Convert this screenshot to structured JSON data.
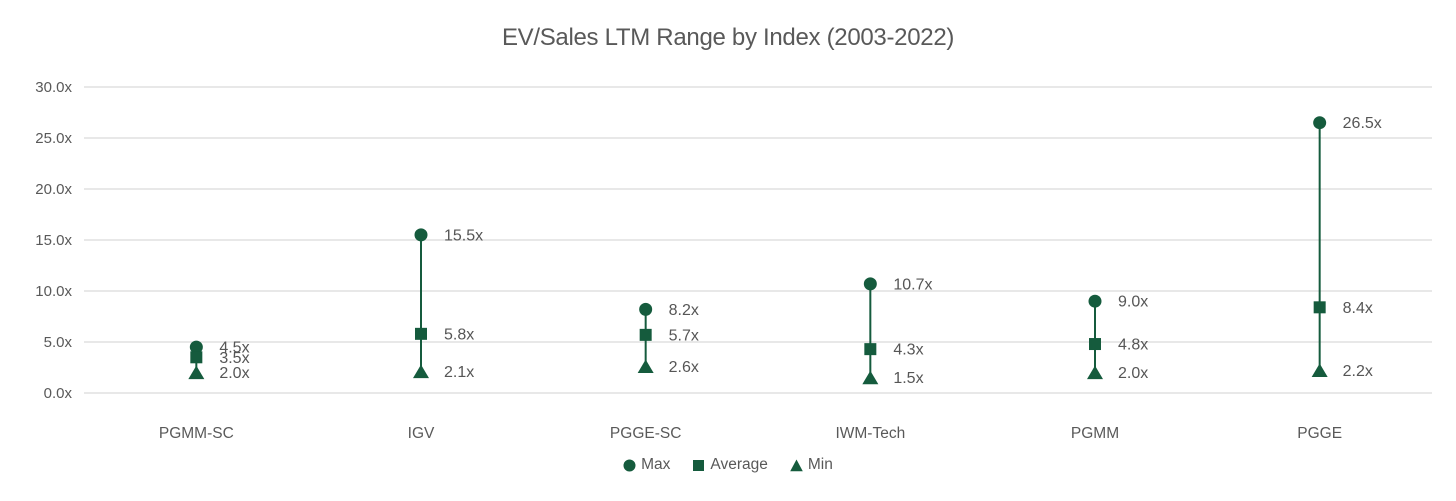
{
  "chart_data": {
    "type": "scatter",
    "variant": "vertical-high-low-range",
    "title": "EV/Sales LTM Range by Index (2003-2022)",
    "categories": [
      "PGMM-SC",
      "IGV",
      "PGGE-SC",
      "IWM-Tech",
      "PGMM",
      "PGGE"
    ],
    "series": [
      {
        "name": "Max",
        "marker": "circle",
        "values": [
          4.5,
          15.5,
          8.2,
          10.7,
          9.0,
          26.5
        ]
      },
      {
        "name": "Average",
        "marker": "square",
        "values": [
          3.5,
          5.8,
          5.7,
          4.3,
          4.8,
          8.4
        ]
      },
      {
        "name": "Min",
        "marker": "triangle",
        "values": [
          2.0,
          2.1,
          2.6,
          1.5,
          2.0,
          2.2
        ]
      }
    ],
    "value_suffix": "x",
    "data_labels_visible": true,
    "ylim": [
      0,
      30
    ],
    "ytick_step": 5,
    "ytick_labels": [
      "0.0x",
      "5.0x",
      "10.0x",
      "15.0x",
      "20.0x",
      "25.0x",
      "30.0x"
    ],
    "grid": true,
    "legend_position": "bottom",
    "colors": {
      "marker": "#155b3d",
      "range_line": "#155b3d",
      "axis_text": "#595959",
      "data_label_text": "#565656",
      "gridline": "#d9d9d9",
      "background": "#ffffff"
    }
  }
}
